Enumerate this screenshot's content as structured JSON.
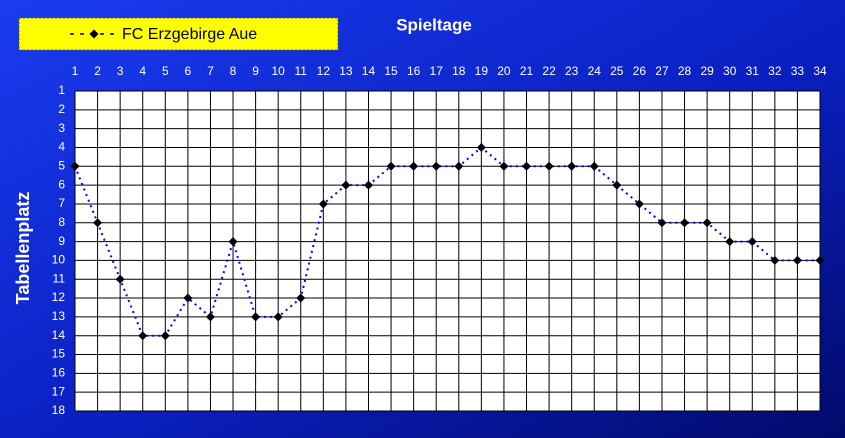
{
  "chart_data": {
    "type": "line",
    "title": "Spieltage",
    "y_label": "Tabellenplatz",
    "x": [
      1,
      2,
      3,
      4,
      5,
      6,
      7,
      8,
      9,
      10,
      11,
      12,
      13,
      14,
      15,
      16,
      17,
      18,
      19,
      20,
      21,
      22,
      23,
      24,
      25,
      26,
      27,
      28,
      29,
      30,
      31,
      32,
      33,
      34
    ],
    "xlim": [
      1,
      34
    ],
    "xticks": [
      1,
      2,
      3,
      4,
      5,
      6,
      7,
      8,
      9,
      10,
      11,
      12,
      13,
      14,
      15,
      16,
      17,
      18,
      19,
      20,
      21,
      22,
      23,
      24,
      25,
      26,
      27,
      28,
      29,
      30,
      31,
      32,
      33,
      34
    ],
    "ylim": [
      18,
      1
    ],
    "yticks": [
      1,
      2,
      3,
      4,
      5,
      6,
      7,
      8,
      9,
      10,
      11,
      12,
      13,
      14,
      15,
      16,
      17,
      18
    ],
    "grid": true,
    "legend": "top-left",
    "series": [
      {
        "name": "FC Erzgebirge Aue",
        "color": "#0000ff",
        "marker_color": "#000000",
        "values": [
          5,
          8,
          11,
          14,
          14,
          12,
          13,
          9,
          13,
          13,
          12,
          7,
          6,
          6,
          5,
          5,
          5,
          5,
          4,
          5,
          5,
          5,
          5,
          5,
          6,
          7,
          8,
          8,
          8,
          9,
          9,
          10,
          10,
          10
        ]
      }
    ]
  }
}
